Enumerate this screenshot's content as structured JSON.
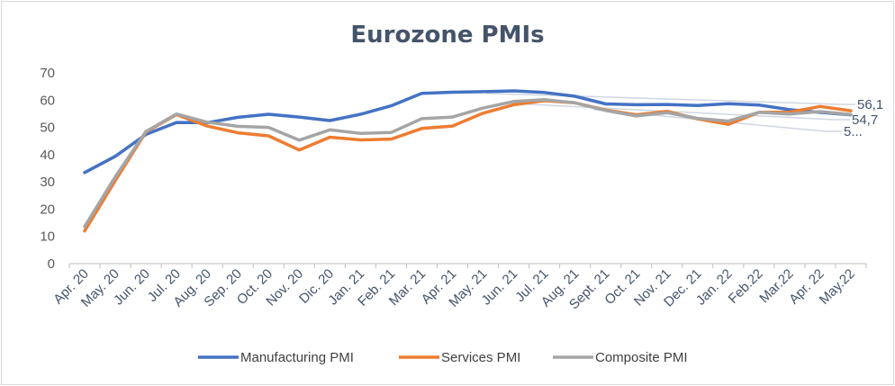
{
  "chart_data": {
    "type": "line",
    "title": "Eurozone PMIs",
    "xlabel": "",
    "ylabel": "",
    "ylim": [
      0,
      70
    ],
    "yticks": [
      0,
      10,
      20,
      30,
      40,
      50,
      60,
      70
    ],
    "grid": false,
    "legend_position": "bottom",
    "categories": [
      "Apr. 20",
      "May. 20",
      "Jun. 20",
      "Jul. 20",
      "Aug. 20",
      "Sep. 20",
      "Oct. 20",
      "Nov. 20",
      "Dic. 20",
      "Jan. 21",
      "Feb. 21",
      "Mar. 21",
      "Apr. 21",
      "May. 21",
      "Jun. 21",
      "Jul. 21",
      "Aug. 21",
      "Sept. 21",
      "Oct. 21",
      "Nov. 21",
      "Dec. 21",
      "Jan. 22",
      "Feb.22",
      "Mar.22",
      "Apr. 22",
      "May.22"
    ],
    "series": [
      {
        "name": "Manufacturing PMI",
        "color": "#4472c4",
        "values": [
          33.4,
          39.4,
          47.4,
          51.8,
          51.7,
          53.7,
          54.8,
          53.8,
          52.5,
          54.8,
          57.9,
          62.5,
          62.9,
          63.1,
          63.4,
          62.8,
          61.4,
          58.6,
          58.3,
          58.4,
          58.0,
          58.7,
          58.2,
          56.5,
          55.5,
          54.6
        ]
      },
      {
        "name": "Services PMI",
        "color": "#ed7d31",
        "values": [
          12.0,
          30.5,
          48.3,
          54.7,
          50.5,
          48.0,
          46.9,
          41.7,
          46.4,
          45.4,
          45.7,
          49.6,
          50.5,
          55.2,
          58.3,
          59.8,
          59.0,
          56.4,
          54.6,
          55.9,
          53.1,
          51.1,
          55.5,
          55.6,
          57.7,
          56.1
        ]
      },
      {
        "name": "Composite PMI",
        "color": "#a5a5a5",
        "values": [
          13.6,
          31.9,
          48.5,
          54.9,
          51.9,
          50.4,
          50.0,
          45.3,
          49.1,
          47.8,
          48.1,
          53.2,
          53.8,
          57.1,
          59.5,
          60.2,
          59.0,
          56.2,
          54.2,
          55.4,
          53.3,
          52.3,
          55.5,
          54.9,
          55.8,
          54.7
        ]
      }
    ],
    "end_labels": [
      {
        "series": "Services PMI",
        "text": "56,1"
      },
      {
        "series": "Composite PMI",
        "text": "54,7"
      },
      {
        "series": "Manufacturing PMI",
        "text": "5..."
      }
    ]
  }
}
